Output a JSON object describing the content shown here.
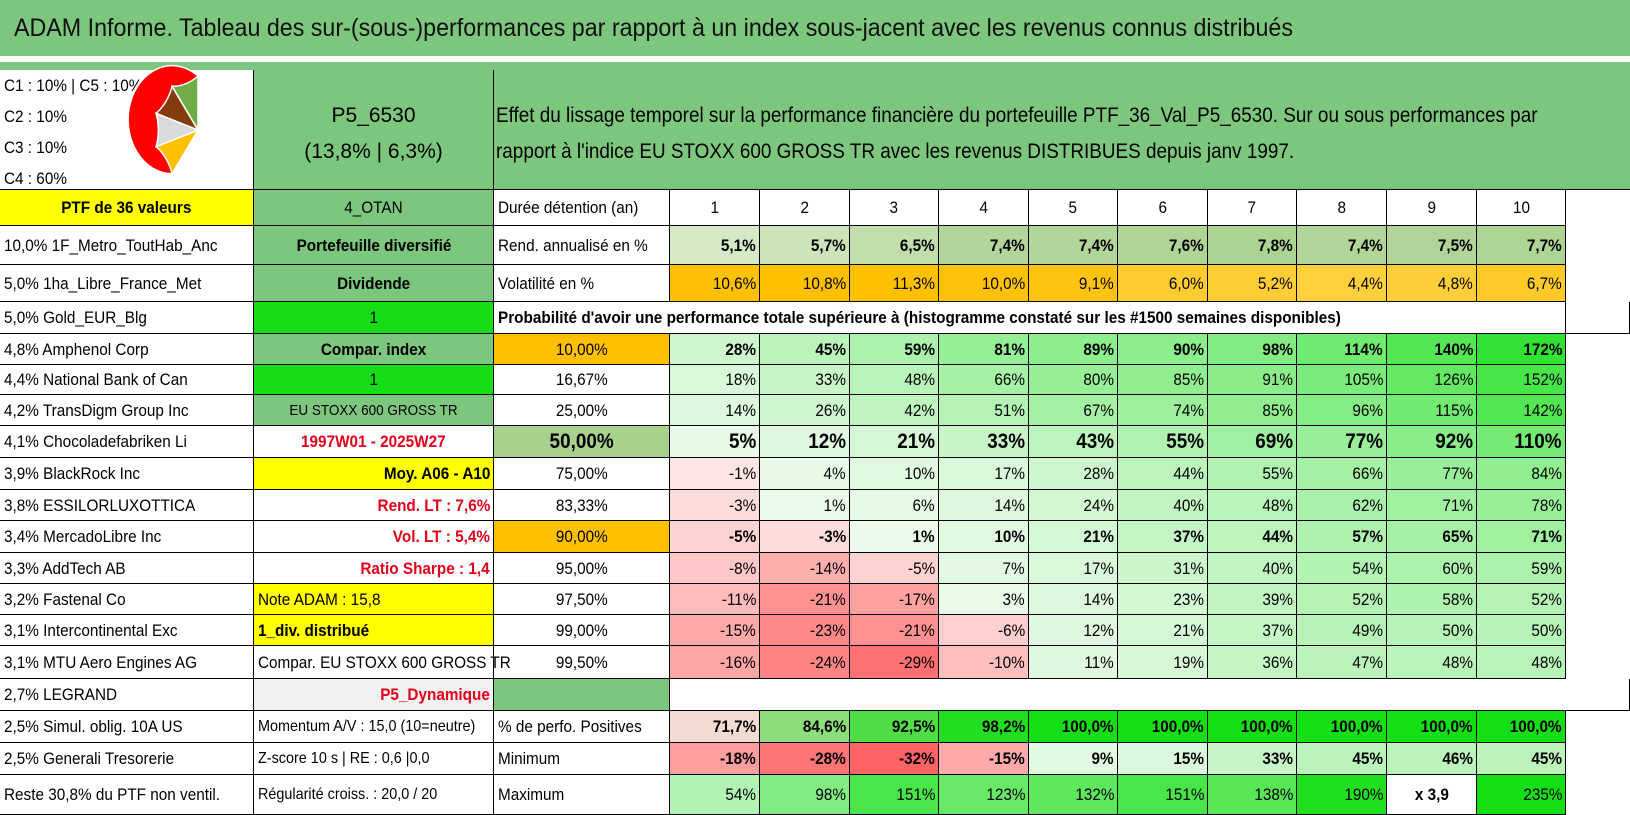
{
  "title": "ADAM Informe. Tableau des sur-(sous-)performances par rapport à un index sous-jacent avec les revenus connus distribués",
  "allocation": {
    "lines": [
      "C1 : 10% | C5 : 10%",
      "C2 : 10%",
      "C3 : 10%",
      "C4 : 60%"
    ],
    "pie": [
      {
        "label": "C4",
        "share": 60,
        "color": "#ff0000"
      },
      {
        "label": "C5",
        "share": 10,
        "color": "#ffc000"
      },
      {
        "label": "C1",
        "share": 10,
        "color": "#d9d9d9"
      },
      {
        "label": "C2",
        "share": 10,
        "color": "#843c0c"
      },
      {
        "label": "C3",
        "share": 10,
        "color": "#70ad47"
      }
    ]
  },
  "portfolio": {
    "name": "P5_6530",
    "stats": "(13,8% | 6,3%)"
  },
  "description": [
    "Effet du lissage temporel sur la performance financière du portefeuille PTF_36_Val_P5_6530. Sur ou sous performances par",
    "rapport à l'indice EU STOXX 600 GROSS TR avec les revenus DISTRIBUES depuis janv 1997."
  ],
  "holdings": [
    "PTF de 36 valeurs",
    "10,0% 1F_Metro_ToutHab_Anc",
    "5,0% 1ha_Libre_France_Met",
    "5,0% Gold_EUR_Blg",
    "4,8% Amphenol Corp",
    "4,4% National Bank of Can",
    "4,2% TransDigm Group Inc",
    "4,1% Chocoladefabriken Li",
    "3,9% BlackRock Inc",
    "3,8% ESSILORLUXOTTICA",
    "3,4% MercadoLibre Inc",
    "3,3% AddTech AB",
    "3,2% Fastenal Co",
    "3,1% Intercontinental Exc",
    "3,1% MTU Aero Engines AG",
    "2,7% LEGRAND",
    "2,5% Simul. oblig. 10A US",
    "2,5% Generali Tresorerie",
    "Reste 30,8% du PTF non ventil."
  ],
  "info": [
    "4_OTAN",
    "Portefeuille diversifié",
    "Dividende",
    "1",
    "Compar. index",
    "1",
    "EU STOXX 600 GROSS TR",
    "1997W01 - 2025W27",
    "Moy. A06 - A10",
    "Rend. LT : 7,6%",
    "Vol. LT : 5,4%",
    "Ratio Sharpe : 1,4",
    "Note ADAM : 15,8",
    "1_div. distribué",
    "Compar. EU STOXX 600 GROSS TR",
    "P5_Dynamique",
    "Momentum A/V : 15,0 (10=neutre)",
    "Z-score 10 s | RE : 0,6 |0,0",
    "Régularité croiss. : 20,0 / 20"
  ],
  "durations": {
    "label": "Durée détention (an)",
    "years": [
      "1",
      "2",
      "3",
      "4",
      "5",
      "6",
      "7",
      "8",
      "9",
      "10"
    ]
  },
  "returns": {
    "label": "Rend. annualisé en %",
    "values": [
      "5,1%",
      "5,7%",
      "6,5%",
      "7,4%",
      "7,4%",
      "7,6%",
      "7,8%",
      "7,4%",
      "7,5%",
      "7,7%"
    ]
  },
  "volatility": {
    "label": "Volatilité en %",
    "values": [
      "10,6%",
      "10,8%",
      "11,3%",
      "10,0%",
      "9,1%",
      "6,0%",
      "5,2%",
      "4,4%",
      "4,8%",
      "6,7%"
    ]
  },
  "probability_title": "Probabilité d'avoir une performance totale supérieure à (histogramme constaté sur les #1500 semaines disponibles)",
  "percentiles": [
    {
      "p": "10,00%",
      "v": [
        "28%",
        "45%",
        "59%",
        "81%",
        "89%",
        "90%",
        "98%",
        "114%",
        "140%",
        "172%"
      ]
    },
    {
      "p": "16,67%",
      "v": [
        "18%",
        "33%",
        "48%",
        "66%",
        "80%",
        "85%",
        "91%",
        "105%",
        "126%",
        "152%"
      ]
    },
    {
      "p": "25,00%",
      "v": [
        "14%",
        "26%",
        "42%",
        "51%",
        "67%",
        "74%",
        "85%",
        "96%",
        "115%",
        "142%"
      ]
    },
    {
      "p": "50,00%",
      "v": [
        "5%",
        "12%",
        "21%",
        "33%",
        "43%",
        "55%",
        "69%",
        "77%",
        "92%",
        "110%"
      ]
    },
    {
      "p": "75,00%",
      "v": [
        "-1%",
        "4%",
        "10%",
        "17%",
        "28%",
        "44%",
        "55%",
        "66%",
        "77%",
        "84%"
      ]
    },
    {
      "p": "83,33%",
      "v": [
        "-3%",
        "1%",
        "6%",
        "14%",
        "24%",
        "40%",
        "48%",
        "62%",
        "71%",
        "78%"
      ]
    },
    {
      "p": "90,00%",
      "v": [
        "-5%",
        "-3%",
        "1%",
        "10%",
        "21%",
        "37%",
        "44%",
        "57%",
        "65%",
        "71%"
      ]
    },
    {
      "p": "95,00%",
      "v": [
        "-8%",
        "-14%",
        "-5%",
        "7%",
        "17%",
        "31%",
        "40%",
        "54%",
        "60%",
        "59%"
      ]
    },
    {
      "p": "97,50%",
      "v": [
        "-11%",
        "-21%",
        "-17%",
        "3%",
        "14%",
        "23%",
        "39%",
        "52%",
        "58%",
        "52%"
      ]
    },
    {
      "p": "99,00%",
      "v": [
        "-15%",
        "-23%",
        "-21%",
        "-6%",
        "12%",
        "21%",
        "37%",
        "49%",
        "50%",
        "50%"
      ]
    },
    {
      "p": "99,50%",
      "v": [
        "-16%",
        "-24%",
        "-29%",
        "-10%",
        "11%",
        "19%",
        "36%",
        "47%",
        "48%",
        "48%"
      ]
    }
  ],
  "positives": {
    "label": "% de perfo. Positives",
    "values": [
      "71,7%",
      "84,6%",
      "92,5%",
      "98,2%",
      "100,0%",
      "100,0%",
      "100,0%",
      "100,0%",
      "100,0%",
      "100,0%"
    ]
  },
  "minimum": {
    "label": "Minimum",
    "values": [
      "-18%",
      "-28%",
      "-32%",
      "-15%",
      "9%",
      "15%",
      "33%",
      "45%",
      "46%",
      "45%"
    ]
  },
  "maximum": {
    "label": "Maximum",
    "values": [
      "54%",
      "98%",
      "151%",
      "123%",
      "132%",
      "151%",
      "138%",
      "190%",
      "x 3,9",
      "235%"
    ]
  },
  "colors": {
    "header_green": "#7dc67d",
    "bright_green": "#16dc16",
    "yellow": "#ffff00",
    "orange": "#ffc000",
    "alert_red": "#e2001a"
  }
}
